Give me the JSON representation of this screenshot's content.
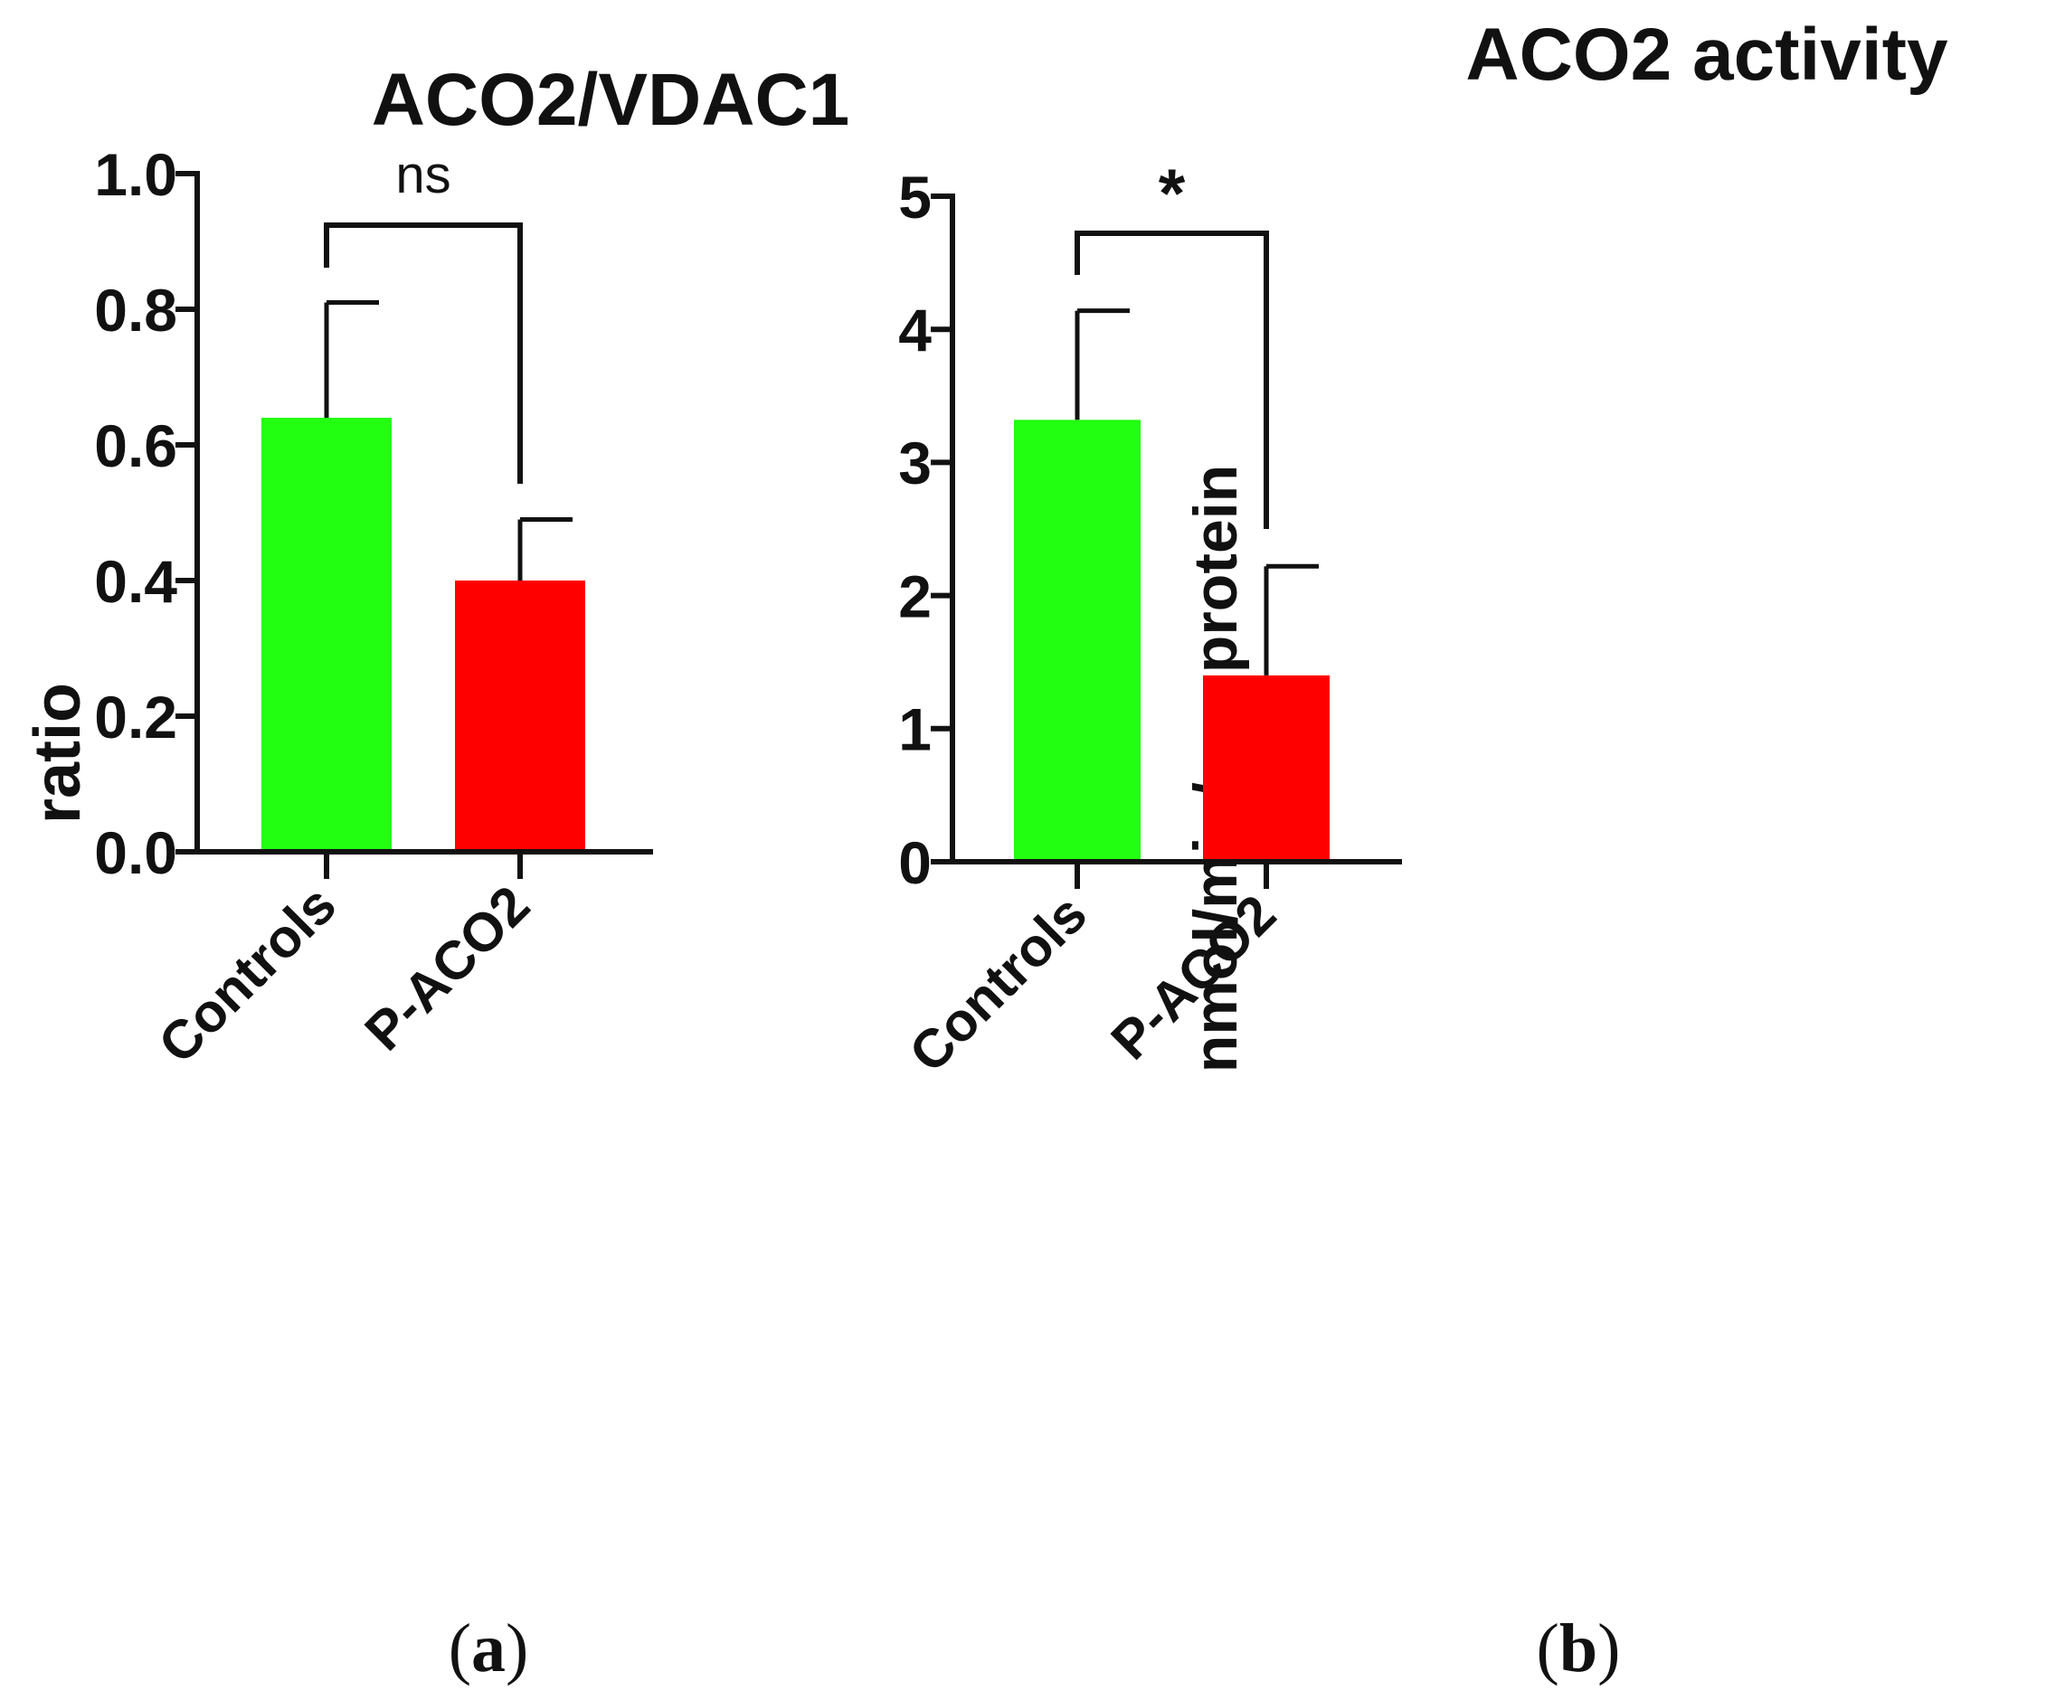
{
  "chart_data": [
    {
      "type": "bar",
      "panel": "(a)",
      "panel_letter": "a",
      "title": "ACO2/VDAC1",
      "xlabel": "",
      "ylabel": "ratio",
      "categories": [
        "Controls",
        "P-ACO2"
      ],
      "values": [
        0.64,
        0.4
      ],
      "error": [
        0.17,
        0.09
      ],
      "colors": [
        "#22ff11",
        "#ff0000"
      ],
      "ylim": [
        0,
        1.0
      ],
      "yticks": [
        0.0,
        0.2,
        0.4,
        0.6,
        0.8,
        1.0
      ],
      "ytick_labels": [
        "0.0",
        "0.2",
        "0.4",
        "0.6",
        "0.8",
        "1.0"
      ],
      "significance": "ns",
      "grid": false
    },
    {
      "type": "bar",
      "panel": "(b)",
      "panel_letter": "b",
      "title": "ACO2 activity",
      "xlabel": "",
      "ylabel": "nmol/min/mg protein",
      "categories": [
        "Controls",
        "P-ACO2"
      ],
      "values": [
        3.32,
        1.4
      ],
      "error": [
        0.82,
        0.82
      ],
      "colors": [
        "#22ff11",
        "#ff0000"
      ],
      "ylim": [
        0,
        5
      ],
      "yticks": [
        0,
        1,
        2,
        3,
        4,
        5
      ],
      "ytick_labels": [
        "0",
        "1",
        "2",
        "3",
        "4",
        "5"
      ],
      "significance": "*",
      "grid": false
    }
  ]
}
